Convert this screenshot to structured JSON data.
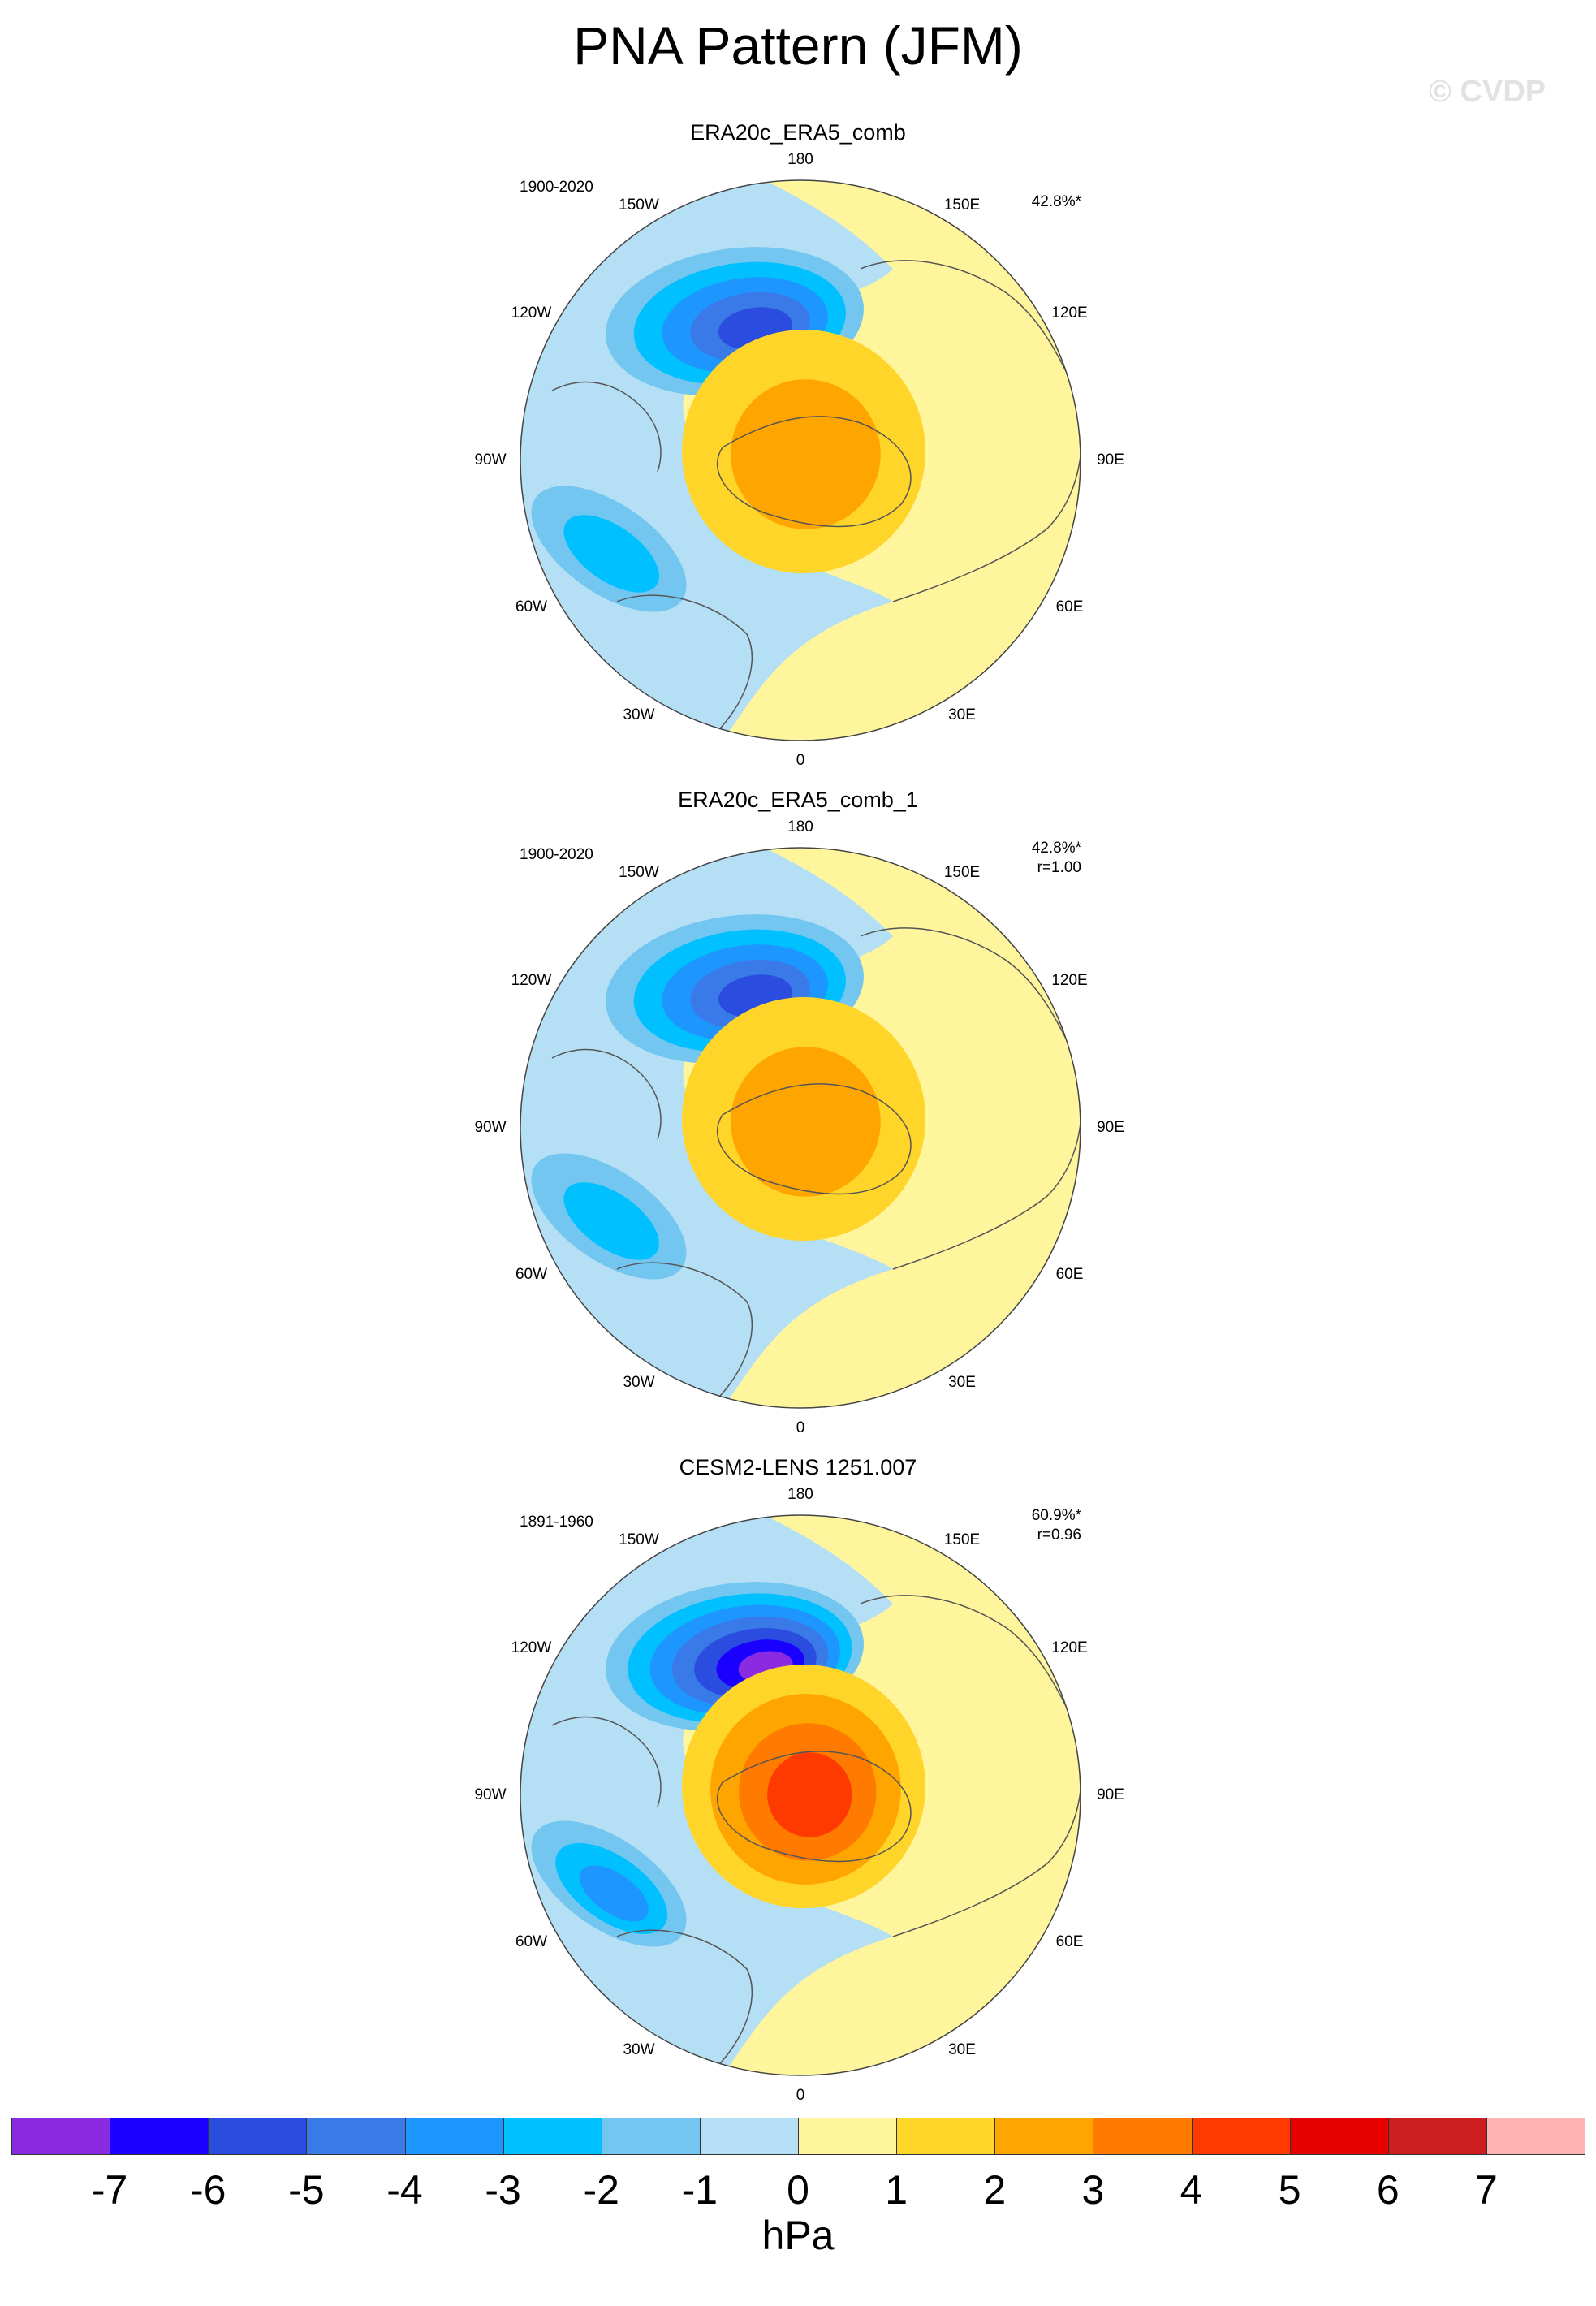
{
  "figure": {
    "title": "PNA Pattern (JFM)",
    "watermark": "© CVDP",
    "units": "hPa"
  },
  "lon_labels": [
    "180",
    "150E",
    "120E",
    "90E",
    "60E",
    "30E",
    "0",
    "30W",
    "60W",
    "90W",
    "120W",
    "150W"
  ],
  "colorbar": {
    "levels": [
      "-7",
      "-6",
      "-5",
      "-4",
      "-3",
      "-2",
      "-1",
      "0",
      "1",
      "2",
      "3",
      "4",
      "5",
      "6",
      "7"
    ],
    "colors": [
      "#8a2be2",
      "#1a00ff",
      "#2a4de0",
      "#3a7ae8",
      "#1e96ff",
      "#00c0ff",
      "#72c6f0",
      "#b5dff5",
      "#fff59d",
      "#ffd52a",
      "#ffa500",
      "#ff7b00",
      "#ff3a00",
      "#e60000",
      "#cc1e1e",
      "#ffb4b4"
    ]
  },
  "chart_data": [
    {
      "type": "heatmap",
      "title": "ERA20c_ERA5_comb",
      "period": "1900-2020",
      "variance": "42.8%*",
      "correlation": "",
      "centers": [
        {
          "name": "north-pacific-low",
          "min_hpa": -5
        },
        {
          "name": "western-canada-high",
          "max_hpa": 2
        },
        {
          "name": "southeast-us-low",
          "min_hpa": -2
        }
      ]
    },
    {
      "type": "heatmap",
      "title": "ERA20c_ERA5_comb_1",
      "period": "1900-2020",
      "variance": "42.8%*",
      "correlation": "r=1.00",
      "centers": [
        {
          "name": "north-pacific-low",
          "min_hpa": -5
        },
        {
          "name": "western-canada-high",
          "max_hpa": 2
        },
        {
          "name": "southeast-us-low",
          "min_hpa": -2
        }
      ]
    },
    {
      "type": "heatmap",
      "title": "CESM2-LENS 1251.007",
      "period": "1891-1960",
      "variance": "60.9%*",
      "correlation": "r=0.96",
      "centers": [
        {
          "name": "north-pacific-low",
          "min_hpa": -7
        },
        {
          "name": "western-canada-high",
          "max_hpa": 4
        },
        {
          "name": "southeast-us-low",
          "min_hpa": -3
        }
      ]
    }
  ]
}
